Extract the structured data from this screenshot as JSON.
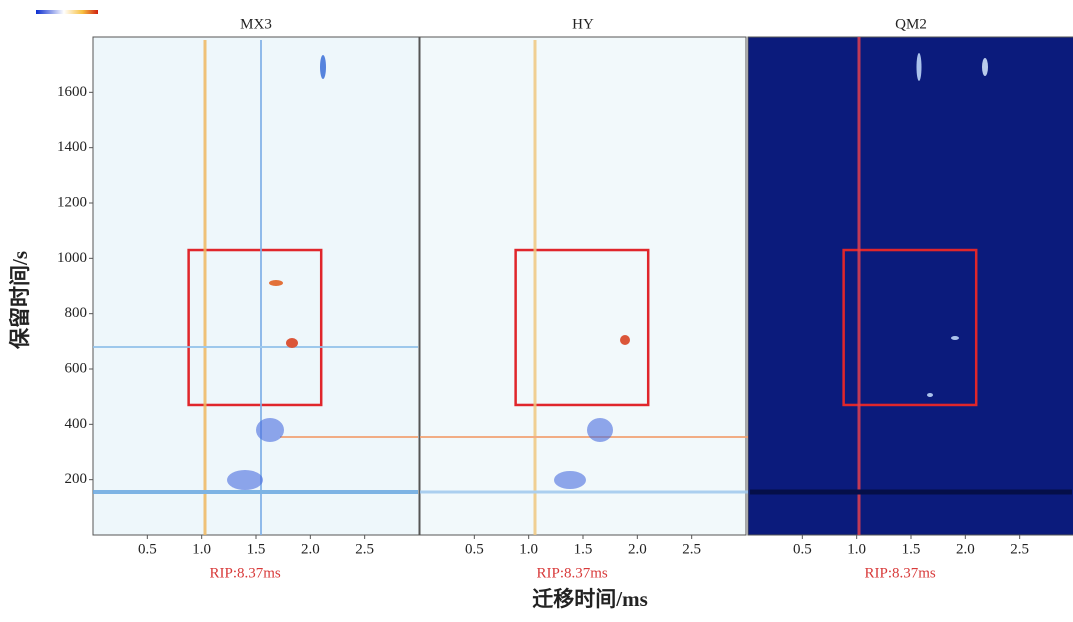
{
  "chart_data": [
    {
      "type": "heatmap",
      "title": "MX3",
      "background": "#eef7fb",
      "xlim": [
        0,
        3
      ],
      "xticks": [
        0.5,
        {
          "value": 1,
          "label": "1.0"
        },
        1.5,
        {
          "value": 2,
          "label": "2.0"
        },
        2.5
      ],
      "ylim": [
        0,
        1800
      ],
      "yticks": [
        200,
        400,
        600,
        800,
        1000,
        1200,
        1400,
        1600
      ],
      "box": {
        "x": [
          0.88,
          2.1
        ],
        "y": [
          470,
          1030
        ],
        "color": "#e0262b"
      },
      "annotation": "RIP:8.37ms"
    },
    {
      "type": "heatmap",
      "title": "HY",
      "background": "#f2f9fb",
      "xlim": [
        0,
        3
      ],
      "xticks": [
        0.5,
        {
          "value": 1,
          "label": "1.0"
        },
        1.5,
        {
          "value": 2,
          "label": "2.0"
        },
        2.5
      ],
      "ylim": [
        0,
        1800
      ],
      "box": {
        "x": [
          0.88,
          2.1
        ],
        "y": [
          470,
          1030
        ],
        "color": "#e0262b"
      },
      "annotation": "RIP:8.37ms"
    },
    {
      "type": "heatmap",
      "title": "QM2",
      "background": "#0b1b7c",
      "xlim": [
        0,
        3
      ],
      "xticks": [
        0.5,
        {
          "value": 1,
          "label": "1.0"
        },
        1.5,
        {
          "value": 2,
          "label": "2.0"
        },
        2.5
      ],
      "ylim": [
        0,
        1800
      ],
      "box": {
        "x": [
          0.88,
          2.1
        ],
        "y": [
          470,
          1030
        ],
        "color": "#e0262b"
      },
      "annotation": "RIP:8.37ms"
    }
  ],
  "x_label": "迁移时间/ms",
  "y_label": "保留时间/s"
}
